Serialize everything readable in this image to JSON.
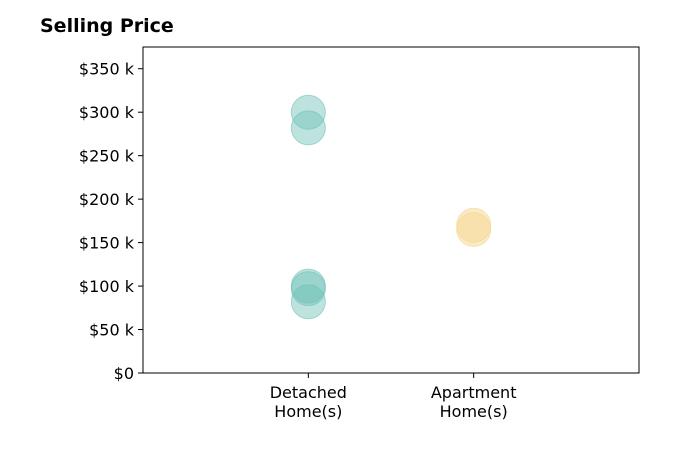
{
  "chart_data": {
    "type": "scatter",
    "title": "Selling Price",
    "xlabel": "",
    "ylabel": "",
    "categories": [
      "Detached\nHome(s)",
      "Apartment\nHome(s)"
    ],
    "x_ticks": [
      {
        "lines": [
          "Detached",
          "Home(s)"
        ]
      },
      {
        "lines": [
          "Apartment",
          "Home(s)"
        ]
      }
    ],
    "xlim": [
      -1,
      2
    ],
    "ylim": [
      0,
      375000
    ],
    "y_ticks": [
      {
        "value": 0,
        "label": "$0"
      },
      {
        "value": 50000,
        "label": "$50 k"
      },
      {
        "value": 100000,
        "label": "$100 k"
      },
      {
        "value": 150000,
        "label": "$150 k"
      },
      {
        "value": 200000,
        "label": "$200 k"
      },
      {
        "value": 250000,
        "label": "$250 k"
      },
      {
        "value": 300000,
        "label": "$300 k"
      },
      {
        "value": 350000,
        "label": "$350 k"
      }
    ],
    "grid": false,
    "series": [
      {
        "category": "Detached\nHome(s)",
        "color": "#6fc2b5",
        "opacity": 0.45,
        "points": [
          {
            "x": 0,
            "y": 300000
          },
          {
            "x": 0,
            "y": 282000
          },
          {
            "x": 0,
            "y": 100000
          },
          {
            "x": 0,
            "y": 97000
          },
          {
            "x": 0,
            "y": 82000
          }
        ]
      },
      {
        "category": "Apartment\nHome(s)",
        "color": "#f5d898",
        "opacity": 0.55,
        "points": [
          {
            "x": 1,
            "y": 170000
          },
          {
            "x": 1,
            "y": 165000
          }
        ]
      }
    ]
  }
}
